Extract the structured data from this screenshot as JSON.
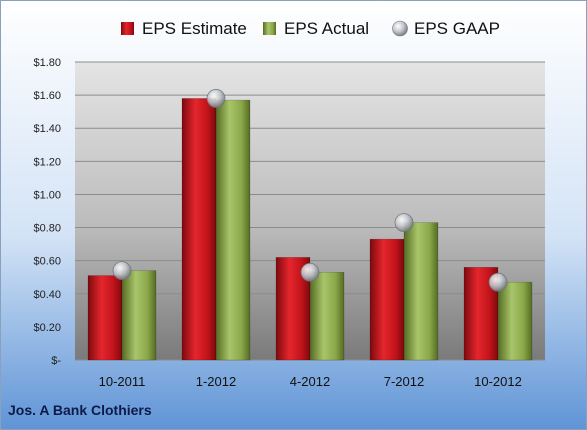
{
  "chart_data": {
    "type": "bar",
    "categories": [
      "10-2011",
      "1-2012",
      "4-2012",
      "7-2012",
      "10-2012"
    ],
    "series": [
      {
        "name": "EPS Estimate",
        "kind": "bar",
        "color": "#c1131a",
        "values": [
          0.51,
          1.58,
          0.62,
          0.73,
          0.56
        ]
      },
      {
        "name": "EPS Actual",
        "kind": "bar",
        "color": "#8aa84a",
        "values": [
          0.54,
          1.57,
          0.53,
          0.83,
          0.47
        ]
      },
      {
        "name": "EPS GAAP",
        "kind": "marker",
        "color": "#b9bdc4",
        "values": [
          0.54,
          1.58,
          0.53,
          0.83,
          0.47
        ]
      }
    ],
    "y_ticks": [
      "$-",
      "$0.20",
      "$0.40",
      "$0.60",
      "$0.80",
      "$1.00",
      "$1.20",
      "$1.40",
      "$1.60",
      "$1.80"
    ],
    "ylim": [
      0,
      1.8
    ],
    "grid": true,
    "legend_position": "top"
  },
  "footer": {
    "company": "Jos. A Bank Clothiers"
  }
}
